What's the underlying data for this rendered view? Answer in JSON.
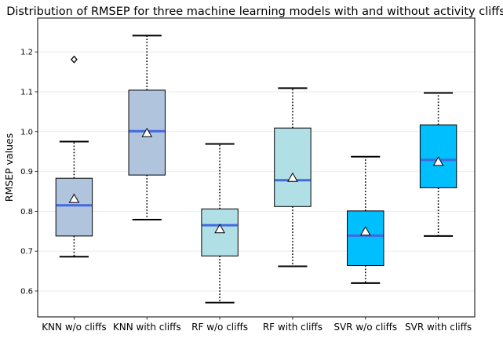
{
  "chart_data": {
    "type": "box",
    "title": "Distribution of RMSEP for three machine learning models with and without activity cliffs",
    "xlabel": "",
    "ylabel": "RMSEP values",
    "ylim": [
      0.535,
      1.285
    ],
    "yticks": [
      "0.6",
      "0.7",
      "0.8",
      "0.9",
      "1.0",
      "1.1",
      "1.2"
    ],
    "grid": "horizontal",
    "categories": [
      "KNN w/o cliffs",
      "KNN with cliffs",
      "RF w/o cliffs",
      "RF with cliffs",
      "SVR w/o cliffs",
      "SVR with cliffs"
    ],
    "boxes": [
      {
        "whislo": 0.686,
        "q1": 0.738,
        "med": 0.815,
        "q3": 0.883,
        "whishi": 0.975,
        "mean": 0.831,
        "fliers": [
          1.181
        ],
        "color": "#b0c4de"
      },
      {
        "whislo": 0.779,
        "q1": 0.891,
        "med": 1.001,
        "q3": 1.104,
        "whishi": 1.241,
        "mean": 0.996,
        "fliers": [],
        "color": "#b0c4de"
      },
      {
        "whislo": 0.571,
        "q1": 0.688,
        "med": 0.765,
        "q3": 0.806,
        "whishi": 0.969,
        "mean": 0.755,
        "fliers": [],
        "color": "#b0e0e6"
      },
      {
        "whislo": 0.662,
        "q1": 0.812,
        "med": 0.878,
        "q3": 1.009,
        "whishi": 1.109,
        "mean": 0.884,
        "fliers": [],
        "color": "#b0e0e6"
      },
      {
        "whislo": 0.62,
        "q1": 0.664,
        "med": 0.739,
        "q3": 0.801,
        "whishi": 0.937,
        "mean": 0.749,
        "fliers": [],
        "color": "#00bfff"
      },
      {
        "whislo": 0.738,
        "q1": 0.859,
        "med": 0.929,
        "q3": 1.017,
        "whishi": 1.097,
        "mean": 0.924,
        "fliers": [],
        "color": "#00bfff"
      }
    ],
    "median_color": "#4169e1",
    "mean_marker": "white triangle",
    "flier_marker": "white diamond"
  }
}
